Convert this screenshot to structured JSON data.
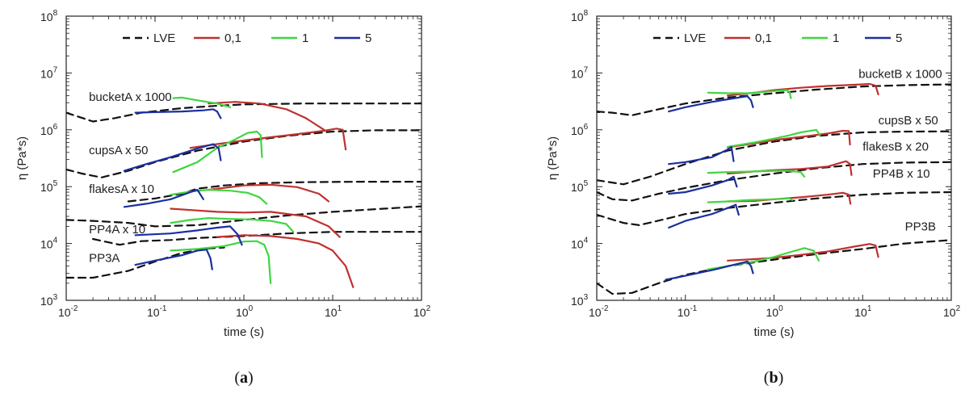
{
  "colors": {
    "LVE": "#111111",
    "rate_0_1": "#c0302e",
    "rate_1": "#3fd63f",
    "rate_5": "#1a2fa0"
  },
  "chart_data": [
    {
      "panel": "a",
      "panel_label": "a",
      "type": "line",
      "xscale": "log",
      "yscale": "log",
      "xlim": [
        0.01,
        100
      ],
      "ylim": [
        1000,
        100000000
      ],
      "xlabel": "time (s)",
      "ylabel": "η (Pa*s)",
      "x_ticks": [
        {
          "base": "10",
          "exp": "-2"
        },
        {
          "base": "10",
          "exp": "-1"
        },
        {
          "base": "10",
          "exp": "0"
        },
        {
          "base": "10",
          "exp": "1"
        },
        {
          "base": "10",
          "exp": "2"
        }
      ],
      "y_ticks": [
        {
          "base": "10",
          "exp": "3"
        },
        {
          "base": "10",
          "exp": "4"
        },
        {
          "base": "10",
          "exp": "5"
        },
        {
          "base": "10",
          "exp": "6"
        },
        {
          "base": "10",
          "exp": "7"
        },
        {
          "base": "10",
          "exp": "8"
        }
      ],
      "legend": [
        "LVE",
        "0,1",
        "1",
        "5"
      ],
      "legend_position": "top",
      "labels": [
        {
          "text": "bucketA x 1000",
          "x": 0.018,
          "y": 3200000
        },
        {
          "text": "cupsA x 50",
          "x": 0.018,
          "y": 370000
        },
        {
          "text": "flakesA x 10",
          "x": 0.018,
          "y": 78000
        },
        {
          "text": "PP4A x 10",
          "x": 0.018,
          "y": 15000
        },
        {
          "text": "PP3A",
          "x": 0.018,
          "y": 4700
        }
      ],
      "series": [
        {
          "name": "LVE",
          "style": "dashed",
          "x": [
            0.01,
            0.02,
            0.035,
            0.07,
            0.2,
            0.5,
            1,
            2,
            5,
            20,
            100
          ],
          "y": [
            2000000,
            1400000,
            1600000,
            2000000,
            2400000,
            2650000,
            2800000,
            2850000,
            2900000,
            2900000,
            2900000
          ]
        },
        {
          "name": "LVE",
          "style": "dashed",
          "x": [
            0.01,
            0.015,
            0.025,
            0.05,
            0.1,
            0.3,
            1,
            3,
            10,
            30,
            100
          ],
          "y": [
            200000,
            170000,
            145000,
            190000,
            270000,
            430000,
            620000,
            780000,
            930000,
            980000,
            980000
          ]
        },
        {
          "name": "LVE",
          "style": "dashed",
          "x": [
            0.05,
            0.1,
            0.2,
            0.3,
            0.6,
            1.5,
            5,
            20,
            100
          ],
          "y": [
            55000,
            62000,
            75000,
            92000,
            105000,
            115000,
            120000,
            122000,
            122000
          ]
        },
        {
          "name": "LVE",
          "style": "dashed",
          "x": [
            0.01,
            0.02,
            0.05,
            0.1,
            0.3,
            1,
            3,
            10,
            100
          ],
          "y": [
            26000,
            25000,
            23000,
            20000,
            21000,
            26000,
            31000,
            36000,
            45000
          ]
        },
        {
          "name": "LVE",
          "style": "dashed",
          "x": [
            0.02,
            0.04,
            0.07,
            0.15,
            0.3,
            1,
            3,
            10,
            100
          ],
          "y": [
            12000,
            9500,
            11000,
            11500,
            12500,
            13500,
            15000,
            16000,
            16000
          ]
        },
        {
          "name": "LVE",
          "style": "dashed",
          "x": [
            0.01,
            0.02,
            0.05,
            0.1,
            0.2,
            0.4,
            0.6
          ],
          "y": [
            2500,
            2500,
            3300,
            4800,
            6800,
            8200,
            8500
          ]
        },
        {
          "name": "0,1",
          "x": [
            0.4,
            0.8,
            1.5,
            3,
            5,
            8
          ],
          "y": [
            2900000,
            3100000,
            2900000,
            2300000,
            1600000,
            1000000
          ]
        },
        {
          "name": "0,1",
          "x": [
            0.25,
            0.5,
            1,
            2,
            4,
            8,
            11,
            13,
            14
          ],
          "y": [
            480000,
            560000,
            650000,
            740000,
            840000,
            960000,
            1050000,
            1000000,
            450000
          ]
        },
        {
          "name": "0,1",
          "x": [
            0.4,
            1,
            2,
            4,
            7,
            9
          ],
          "y": [
            88000,
            105000,
            108000,
            98000,
            75000,
            55000
          ]
        },
        {
          "name": "0,1",
          "x": [
            0.15,
            0.5,
            1,
            2,
            5,
            9,
            12
          ],
          "y": [
            41000,
            36000,
            35000,
            36000,
            30000,
            20000,
            13000
          ]
        },
        {
          "name": "0,1",
          "x": [
            0.5,
            1,
            2,
            4,
            7,
            10,
            14,
            17
          ],
          "y": [
            13000,
            14000,
            13500,
            12000,
            10000,
            7500,
            4000,
            1700
          ]
        },
        {
          "name": "1",
          "x": [
            0.16,
            0.2,
            0.3,
            0.5,
            0.7
          ],
          "y": [
            3600000,
            3700000,
            3300000,
            2900000,
            2500000
          ]
        },
        {
          "name": "1",
          "x": [
            0.16,
            0.3,
            0.5,
            0.8,
            1.1,
            1.4,
            1.55,
            1.6
          ],
          "y": [
            180000,
            270000,
            480000,
            680000,
            880000,
            930000,
            800000,
            330000
          ]
        },
        {
          "name": "1",
          "x": [
            0.15,
            0.25,
            0.4,
            0.7,
            1.1,
            1.5,
            1.8
          ],
          "y": [
            72000,
            82000,
            88000,
            85000,
            78000,
            65000,
            50000
          ]
        },
        {
          "name": "1",
          "x": [
            0.15,
            0.25,
            0.4,
            0.7,
            1.2,
            2,
            3,
            3.6
          ],
          "y": [
            23000,
            26000,
            28000,
            27000,
            26500,
            25000,
            22000,
            16000
          ]
        },
        {
          "name": "1",
          "x": [
            0.15,
            0.3,
            0.6,
            1,
            1.4,
            1.7,
            1.9,
            2
          ],
          "y": [
            7500,
            8000,
            9000,
            10800,
            11000,
            9500,
            6000,
            2000
          ]
        },
        {
          "name": "5",
          "x": [
            0.06,
            0.1,
            0.2,
            0.35,
            0.45,
            0.5,
            0.55
          ],
          "y": [
            2000000,
            2050000,
            2100000,
            2200000,
            2300000,
            2100000,
            1600000
          ]
        },
        {
          "name": "5",
          "x": [
            0.045,
            0.08,
            0.15,
            0.3,
            0.45,
            0.52,
            0.55
          ],
          "y": [
            190000,
            250000,
            330000,
            470000,
            560000,
            470000,
            290000
          ]
        },
        {
          "name": "5",
          "x": [
            0.045,
            0.08,
            0.15,
            0.25,
            0.3,
            0.35
          ],
          "y": [
            44000,
            50000,
            60000,
            80000,
            88000,
            60000
          ]
        },
        {
          "name": "5",
          "x": [
            0.06,
            0.15,
            0.3,
            0.5,
            0.7,
            0.85,
            0.95
          ],
          "y": [
            14000,
            15000,
            17000,
            19000,
            20000,
            14500,
            9500
          ]
        },
        {
          "name": "5",
          "x": [
            0.06,
            0.1,
            0.2,
            0.3,
            0.38,
            0.42,
            0.44
          ],
          "y": [
            4200,
            5000,
            6200,
            7500,
            7800,
            5500,
            3500
          ]
        }
      ]
    },
    {
      "panel": "b",
      "panel_label": "b",
      "type": "line",
      "xscale": "log",
      "yscale": "log",
      "xlim": [
        0.01,
        100
      ],
      "ylim": [
        1000,
        100000000
      ],
      "xlabel": "time (s)",
      "ylabel": "η (Pa*s)",
      "x_ticks": [
        {
          "base": "10",
          "exp": "-2"
        },
        {
          "base": "10",
          "exp": "-1"
        },
        {
          "base": "10",
          "exp": "0"
        },
        {
          "base": "10",
          "exp": "1"
        },
        {
          "base": "10",
          "exp": "2"
        }
      ],
      "y_ticks": [
        {
          "base": "10",
          "exp": "3"
        },
        {
          "base": "10",
          "exp": "4"
        },
        {
          "base": "10",
          "exp": "5"
        },
        {
          "base": "10",
          "exp": "6"
        },
        {
          "base": "10",
          "exp": "7"
        },
        {
          "base": "10",
          "exp": "8"
        }
      ],
      "legend": [
        "LVE",
        "0,1",
        "1",
        "5"
      ],
      "legend_position": "top",
      "labels": [
        {
          "text": "bucketB x 1000",
          "x": 9,
          "y": 8200000
        },
        {
          "text": "cupsB x 50",
          "x": 15,
          "y": 1250000
        },
        {
          "text": "flakesB x 20",
          "x": 10,
          "y": 430000
        },
        {
          "text": "PP4B x 10",
          "x": 13,
          "y": 145000
        },
        {
          "text": "PP3B",
          "x": 30,
          "y": 17000
        }
      ],
      "series": [
        {
          "name": "LVE",
          "style": "dashed",
          "x": [
            0.01,
            0.015,
            0.025,
            0.05,
            0.1,
            0.3,
            1,
            3,
            10,
            30,
            100
          ],
          "y": [
            2100000,
            2000000,
            1800000,
            2300000,
            2900000,
            3700000,
            4400000,
            5100000,
            5800000,
            6100000,
            6300000
          ]
        },
        {
          "name": "LVE",
          "style": "dashed",
          "x": [
            0.01,
            0.02,
            0.04,
            0.1,
            0.3,
            1,
            3,
            10,
            30,
            100
          ],
          "y": [
            130000,
            110000,
            150000,
            250000,
            430000,
            620000,
            780000,
            900000,
            930000,
            940000
          ]
        },
        {
          "name": "LVE",
          "style": "dashed",
          "x": [
            0.01,
            0.015,
            0.025,
            0.05,
            0.1,
            0.3,
            1,
            3,
            10,
            30,
            100
          ],
          "y": [
            80000,
            60000,
            57000,
            75000,
            95000,
            130000,
            170000,
            210000,
            250000,
            265000,
            270000
          ]
        },
        {
          "name": "LVE",
          "style": "dashed",
          "x": [
            0.01,
            0.02,
            0.03,
            0.06,
            0.1,
            0.3,
            1,
            3,
            10,
            30,
            100
          ],
          "y": [
            32000,
            23000,
            21000,
            27000,
            33000,
            42000,
            52000,
            62000,
            72000,
            78000,
            80000
          ]
        },
        {
          "name": "LVE",
          "style": "dashed",
          "x": [
            0.01,
            0.015,
            0.025,
            0.05,
            0.1,
            0.3,
            1,
            3,
            10,
            30,
            100
          ],
          "y": [
            2000,
            1300,
            1350,
            2000,
            2800,
            4000,
            5200,
            6500,
            8000,
            10000,
            11500
          ]
        },
        {
          "name": "0,1",
          "x": [
            0.3,
            0.6,
            1,
            2,
            4,
            8,
            12,
            14,
            15
          ],
          "y": [
            4000000,
            4500000,
            5000000,
            5500000,
            5900000,
            6200000,
            6400000,
            6000000,
            4200000
          ]
        },
        {
          "name": "0,1",
          "x": [
            0.3,
            0.6,
            1,
            2,
            4,
            6,
            7,
            7.2
          ],
          "y": [
            490000,
            580000,
            660000,
            750000,
            860000,
            960000,
            950000,
            550000
          ]
        },
        {
          "name": "0,1",
          "x": [
            0.3,
            0.6,
            1,
            2,
            4,
            6.5,
            7.2,
            7.5
          ],
          "y": [
            170000,
            185000,
            195000,
            205000,
            225000,
            280000,
            250000,
            160000
          ]
        },
        {
          "name": "0,1",
          "x": [
            0.3,
            0.6,
            1,
            2,
            4,
            6,
            7,
            7.3
          ],
          "y": [
            55000,
            56000,
            60000,
            65000,
            72000,
            78000,
            72000,
            50000
          ]
        },
        {
          "name": "0,1",
          "x": [
            0.3,
            0.6,
            1,
            2,
            4,
            8,
            12,
            14,
            15
          ],
          "y": [
            5000,
            5300,
            5600,
            6300,
            7200,
            8800,
            9800,
            9200,
            5800
          ]
        },
        {
          "name": "1",
          "x": [
            0.18,
            0.3,
            0.5,
            1,
            1.4,
            1.5,
            1.55
          ],
          "y": [
            4500000,
            4400000,
            4400000,
            4800000,
            5000000,
            4600000,
            3600000
          ]
        },
        {
          "name": "1",
          "x": [
            0.3,
            0.6,
            1,
            1.5,
            2,
            3,
            3.3
          ],
          "y": [
            500000,
            600000,
            700000,
            800000,
            900000,
            1000000,
            800000
          ]
        },
        {
          "name": "1",
          "x": [
            0.18,
            0.3,
            0.6,
            1,
            1.5,
            2,
            2.2
          ],
          "y": [
            175000,
            180000,
            185000,
            190000,
            190000,
            180000,
            150000
          ]
        },
        {
          "name": "1",
          "x": [
            0.18,
            0.3,
            0.5,
            1,
            1.5,
            1.6
          ],
          "y": [
            53000,
            55000,
            58000,
            60000,
            62000,
            58000
          ]
        },
        {
          "name": "1",
          "x": [
            0.18,
            0.3,
            0.6,
            1,
            1.5,
            2.2,
            2.8,
            3.2
          ],
          "y": [
            3500,
            4000,
            4800,
            5800,
            7000,
            8300,
            7500,
            5000
          ]
        },
        {
          "name": "5",
          "x": [
            0.065,
            0.1,
            0.2,
            0.4,
            0.5,
            0.55,
            0.58
          ],
          "y": [
            2100000,
            2500000,
            3100000,
            3700000,
            3900000,
            3300000,
            2500000
          ]
        },
        {
          "name": "5",
          "x": [
            0.065,
            0.1,
            0.2,
            0.3,
            0.33,
            0.35
          ],
          "y": [
            250000,
            270000,
            330000,
            450000,
            500000,
            280000
          ]
        },
        {
          "name": "5",
          "x": [
            0.065,
            0.1,
            0.2,
            0.3,
            0.35,
            0.38
          ],
          "y": [
            75000,
            80000,
            105000,
            130000,
            150000,
            100000
          ]
        },
        {
          "name": "5",
          "x": [
            0.065,
            0.1,
            0.2,
            0.3,
            0.37,
            0.4
          ],
          "y": [
            19000,
            25000,
            33000,
            42000,
            48000,
            32000
          ]
        },
        {
          "name": "5",
          "x": [
            0.06,
            0.1,
            0.2,
            0.35,
            0.5,
            0.55,
            0.58
          ],
          "y": [
            2300,
            2700,
            3400,
            4200,
            4800,
            4000,
            3000
          ]
        }
      ]
    }
  ]
}
